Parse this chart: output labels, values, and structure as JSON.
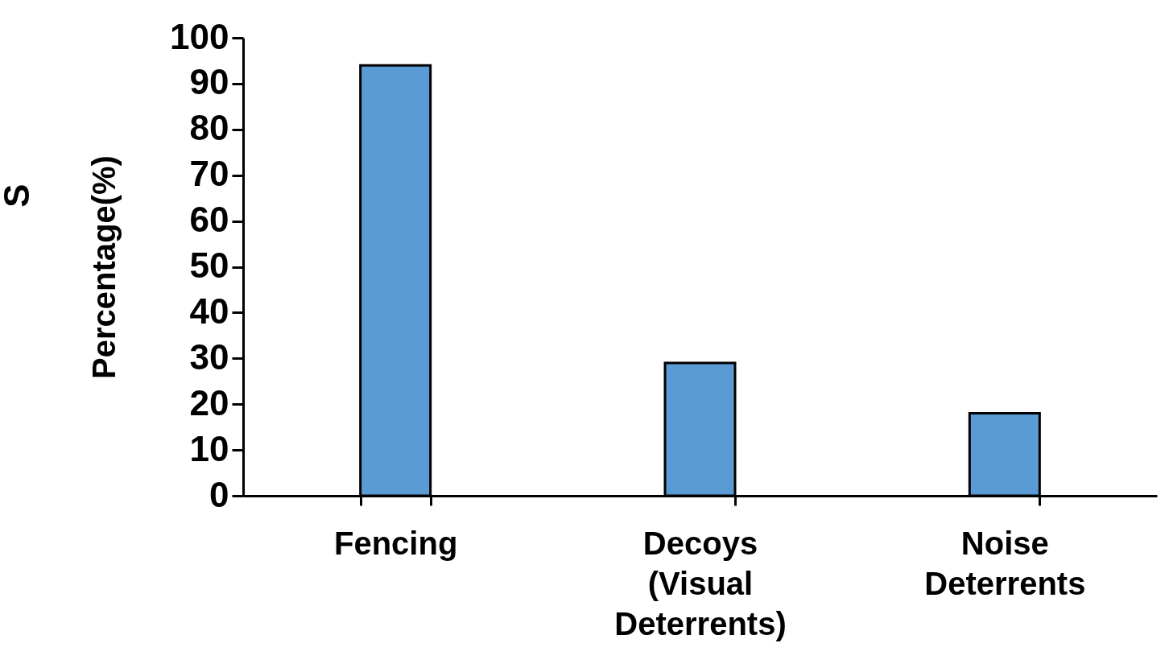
{
  "chart_data": {
    "type": "bar",
    "ylabel": "Percentage(%)",
    "categories": [
      "Fencing",
      "Decoys (Visual Deterrents)",
      "Noise Deterrents"
    ],
    "values": [
      94,
      29,
      18
    ],
    "color": "#5b9bd5",
    "ylim": [
      0,
      100
    ],
    "yticks": [
      0,
      10,
      20,
      30,
      40,
      50,
      60,
      70,
      80,
      90,
      100
    ],
    "grid": false,
    "annotations": [
      "S"
    ]
  }
}
